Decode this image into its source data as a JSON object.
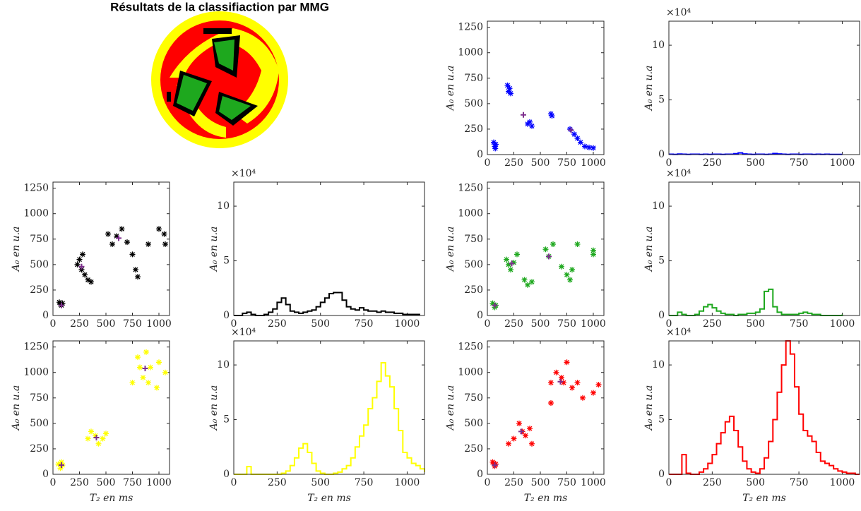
{
  "title": "Résultats de la classifiaction par MMG",
  "chart_data": [
    {
      "type": "scatter",
      "ylabel": "A₀ en u.a",
      "xlim": [
        0,
        1100
      ],
      "ylim": [
        0,
        1310
      ],
      "xticks": [
        0,
        250,
        500,
        750,
        1000
      ],
      "yticks": [
        0,
        250,
        500,
        750,
        1000,
        1250
      ],
      "series": [
        {
          "color": "#0000ff",
          "marker": "*",
          "x": [
            60,
            70,
            80,
            75,
            190,
            200,
            210,
            220,
            380,
            400,
            420,
            600,
            610,
            780,
            820,
            850,
            880,
            920,
            960,
            1000
          ],
          "values": [
            120,
            80,
            100,
            60,
            680,
            620,
            650,
            600,
            300,
            320,
            280,
            400,
            380,
            250,
            200,
            160,
            120,
            80,
            70,
            65
          ]
        },
        {
          "color": "#7e2f8e",
          "marker": "+",
          "x": [
            340,
            790
          ],
          "values": [
            390,
            240
          ]
        }
      ]
    },
    {
      "type": "step",
      "ylabel": "A₀ en u.a",
      "y_multiplier": "×10⁴",
      "color": "#0000ff",
      "xlim": [
        0,
        1100
      ],
      "ylim": [
        0,
        122000
      ],
      "xticks": [
        0,
        250,
        500,
        750,
        1000
      ],
      "yticks": [
        0,
        {
          "value": 50000,
          "label": "5"
        },
        {
          "value": 100000,
          "label": "10"
        }
      ],
      "x": [
        0,
        25,
        50,
        75,
        100,
        125,
        150,
        175,
        200,
        225,
        250,
        275,
        300,
        325,
        350,
        375,
        400,
        425,
        450,
        475,
        500,
        525,
        550,
        575,
        600,
        625,
        650,
        675,
        700,
        725,
        750,
        775,
        800,
        825,
        850,
        875,
        900,
        925,
        950,
        975,
        1000
      ],
      "values": [
        300,
        200,
        500,
        300,
        200,
        300,
        300,
        200,
        300,
        200,
        300,
        300,
        200,
        300,
        300,
        800,
        1500,
        600,
        300,
        200,
        300,
        300,
        200,
        300,
        1000,
        600,
        300,
        200,
        300,
        300,
        200,
        300,
        300,
        200,
        300,
        200,
        300,
        200,
        200,
        200,
        200
      ]
    },
    {
      "type": "scatter",
      "ylabel": "A₀ en u.a",
      "xlim": [
        0,
        1100
      ],
      "ylim": [
        0,
        1310
      ],
      "xticks": [
        0,
        250,
        500,
        750,
        1000
      ],
      "yticks": [
        0,
        250,
        500,
        750,
        1000,
        1250
      ],
      "series": [
        {
          "color": "#000000",
          "marker": "*",
          "x": [
            60,
            70,
            80,
            90,
            230,
            250,
            270,
            280,
            300,
            330,
            360,
            520,
            560,
            600,
            650,
            700,
            750,
            780,
            800,
            900,
            1050,
            1060,
            1000
          ],
          "values": [
            130,
            110,
            100,
            120,
            500,
            550,
            450,
            600,
            400,
            350,
            330,
            800,
            700,
            780,
            850,
            720,
            600,
            450,
            380,
            700,
            800,
            700,
            850
          ]
        },
        {
          "color": "#7e2f8e",
          "marker": "+",
          "x": [
            80,
            270,
            620
          ],
          "values": [
            100,
            480,
            760
          ]
        }
      ]
    },
    {
      "type": "step",
      "ylabel": "A₀ en u.a",
      "y_multiplier": "×10⁴",
      "color": "#000000",
      "xlim": [
        0,
        1100
      ],
      "ylim": [
        0,
        122000
      ],
      "xticks": [
        0,
        250,
        500,
        750,
        1000
      ],
      "yticks": [
        0,
        {
          "value": 50000,
          "label": "5"
        },
        {
          "value": 100000,
          "label": "10"
        }
      ],
      "x": [
        0,
        25,
        50,
        75,
        100,
        125,
        150,
        175,
        200,
        225,
        250,
        275,
        300,
        325,
        350,
        375,
        400,
        425,
        450,
        475,
        500,
        525,
        550,
        575,
        600,
        625,
        650,
        675,
        700,
        725,
        750,
        775,
        800,
        825,
        850,
        875,
        900,
        925,
        950,
        975,
        1000,
        1025,
        1050,
        1075
      ],
      "values": [
        0,
        0,
        2000,
        3000,
        1000,
        0,
        0,
        1000,
        3000,
        6000,
        12000,
        16000,
        10000,
        4000,
        3000,
        2000,
        3000,
        4000,
        5000,
        8000,
        12000,
        16000,
        20000,
        21000,
        21000,
        14000,
        8000,
        6000,
        5000,
        7000,
        5000,
        4000,
        4000,
        3000,
        4000,
        3000,
        3000,
        2000,
        2000,
        1000,
        1000,
        1000,
        1000,
        1000
      ]
    },
    {
      "type": "scatter",
      "ylabel": "A₀ en u.a",
      "xlim": [
        0,
        1100
      ],
      "ylim": [
        0,
        1310
      ],
      "xticks": [
        0,
        250,
        500,
        750,
        1000
      ],
      "yticks": [
        0,
        250,
        500,
        750,
        1000,
        1250
      ],
      "series": [
        {
          "color": "#1ea81e",
          "marker": "*",
          "x": [
            50,
            70,
            80,
            180,
            200,
            220,
            250,
            280,
            350,
            380,
            420,
            550,
            580,
            620,
            700,
            750,
            780,
            800,
            850,
            1000,
            1000
          ],
          "values": [
            120,
            80,
            100,
            550,
            500,
            450,
            520,
            600,
            350,
            300,
            330,
            650,
            580,
            700,
            480,
            400,
            350,
            450,
            700,
            600,
            640
          ]
        },
        {
          "color": "#7e2f8e",
          "marker": "+",
          "x": [
            70,
            230,
            580
          ],
          "values": [
            100,
            510,
            580
          ]
        }
      ]
    },
    {
      "type": "step",
      "ylabel": "A₀ en u.a",
      "y_multiplier": "×10⁴",
      "color": "#1ea81e",
      "xlim": [
        0,
        1100
      ],
      "ylim": [
        0,
        122000
      ],
      "xticks": [
        0,
        250,
        500,
        750,
        1000
      ],
      "yticks": [
        0,
        {
          "value": 50000,
          "label": "5"
        },
        {
          "value": 100000,
          "label": "10"
        }
      ],
      "x": [
        0,
        25,
        50,
        75,
        100,
        125,
        150,
        175,
        200,
        225,
        250,
        275,
        300,
        325,
        350,
        375,
        400,
        425,
        450,
        475,
        500,
        525,
        550,
        575,
        600,
        625,
        650,
        675,
        700,
        725,
        750,
        775,
        800,
        825,
        850,
        875,
        900,
        925,
        950,
        975,
        1000
      ],
      "values": [
        0,
        0,
        3000,
        1000,
        0,
        0,
        1000,
        4000,
        8000,
        10000,
        7000,
        4000,
        2000,
        1000,
        1000,
        0,
        1000,
        1000,
        2000,
        2000,
        3000,
        6000,
        22000,
        24000,
        8000,
        3000,
        1000,
        1000,
        1000,
        1000,
        2000,
        3000,
        2000,
        1000,
        1000,
        0,
        0,
        0,
        0,
        0,
        1000
      ]
    },
    {
      "type": "scatter",
      "ylabel": "A₀ en u.a",
      "xlabel": "T₂ en ms",
      "xlim": [
        0,
        1100
      ],
      "ylim": [
        0,
        1310
      ],
      "xticks": [
        0,
        250,
        500,
        750,
        1000
      ],
      "yticks": [
        0,
        250,
        500,
        750,
        1000,
        1250
      ],
      "series": [
        {
          "color": "#ffff00",
          "marker": "*",
          "x": [
            50,
            70,
            90,
            80,
            330,
            360,
            400,
            430,
            470,
            500,
            750,
            800,
            850,
            880,
            920,
            980,
            1000,
            1060,
            820,
            900
          ],
          "values": [
            100,
            60,
            90,
            120,
            350,
            420,
            380,
            300,
            350,
            400,
            900,
            1150,
            950,
            1200,
            1050,
            850,
            1100,
            1000,
            1050,
            900
          ]
        },
        {
          "color": "#7e2f8e",
          "marker": "+",
          "x": [
            80,
            410,
            870
          ],
          "values": [
            90,
            360,
            1040
          ]
        }
      ]
    },
    {
      "type": "step",
      "ylabel": "A₀ en u.a",
      "xlabel": "T₂ en ms",
      "y_multiplier": "×10⁴",
      "color": "#ffff00",
      "xlim": [
        0,
        1100
      ],
      "ylim": [
        0,
        122000
      ],
      "xticks": [
        0,
        250,
        500,
        750,
        1000
      ],
      "yticks": [
        0,
        {
          "value": 50000,
          "label": "5"
        },
        {
          "value": 100000,
          "label": "10"
        }
      ],
      "x": [
        0,
        25,
        50,
        75,
        100,
        125,
        150,
        175,
        200,
        225,
        250,
        275,
        300,
        325,
        350,
        375,
        400,
        425,
        450,
        475,
        500,
        525,
        550,
        575,
        600,
        625,
        650,
        675,
        700,
        725,
        750,
        775,
        800,
        825,
        850,
        875,
        900,
        925,
        950,
        975,
        1000,
        1025,
        1050,
        1075,
        1100
      ],
      "values": [
        0,
        0,
        0,
        7000,
        0,
        0,
        0,
        0,
        0,
        0,
        0,
        1000,
        3000,
        8000,
        15000,
        24000,
        28000,
        20000,
        10000,
        3000,
        1000,
        0,
        0,
        1000,
        2000,
        5000,
        8000,
        15000,
        25000,
        35000,
        45000,
        60000,
        70000,
        85000,
        102000,
        90000,
        80000,
        60000,
        40000,
        20000,
        15000,
        10000,
        8000,
        5000,
        2000
      ]
    },
    {
      "type": "scatter",
      "ylabel": "A₀ en u.a",
      "xlabel": "T₂ en ms",
      "xlim": [
        0,
        1100
      ],
      "ylim": [
        0,
        1310
      ],
      "xticks": [
        0,
        250,
        500,
        750,
        1000
      ],
      "yticks": [
        0,
        250,
        500,
        750,
        1000,
        1250
      ],
      "series": [
        {
          "color": "#ff0000",
          "marker": "*",
          "x": [
            50,
            70,
            80,
            60,
            200,
            250,
            300,
            330,
            360,
            400,
            420,
            600,
            650,
            700,
            750,
            800,
            850,
            900,
            1000,
            1050,
            600,
            720
          ],
          "values": [
            120,
            80,
            100,
            110,
            300,
            350,
            500,
            420,
            380,
            450,
            300,
            900,
            1000,
            950,
            1100,
            850,
            900,
            750,
            800,
            880,
            700,
            900
          ]
        },
        {
          "color": "#7e2f8e",
          "marker": "+",
          "x": [
            70,
            320,
            690
          ],
          "values": [
            90,
            420,
            910
          ]
        }
      ]
    },
    {
      "type": "step",
      "ylabel": "A₀ en u.a",
      "xlabel": "T₂ en ms",
      "y_multiplier": "×10⁴",
      "color": "#ff0000",
      "xlim": [
        0,
        1100
      ],
      "ylim": [
        0,
        122000
      ],
      "xticks": [
        0,
        250,
        500,
        750,
        1000
      ],
      "yticks": [
        0,
        {
          "value": 50000,
          "label": "5"
        },
        {
          "value": 100000,
          "label": "10"
        }
      ],
      "x": [
        0,
        25,
        50,
        75,
        100,
        125,
        150,
        175,
        200,
        225,
        250,
        275,
        300,
        325,
        350,
        375,
        400,
        425,
        450,
        475,
        500,
        525,
        550,
        575,
        600,
        625,
        650,
        675,
        700,
        725,
        750,
        775,
        800,
        825,
        850,
        875,
        900,
        925,
        950,
        975,
        1000,
        1025,
        1050,
        1075,
        1100
      ],
      "values": [
        0,
        0,
        0,
        18000,
        1000,
        0,
        0,
        2000,
        5000,
        10000,
        18000,
        28000,
        38000,
        48000,
        53000,
        40000,
        25000,
        12000,
        5000,
        2000,
        1000,
        5000,
        15000,
        30000,
        50000,
        75000,
        100000,
        122000,
        110000,
        80000,
        55000,
        40000,
        35000,
        30000,
        20000,
        12000,
        10000,
        8000,
        5000,
        3000,
        2000,
        1000,
        1000,
        0,
        0
      ]
    }
  ]
}
